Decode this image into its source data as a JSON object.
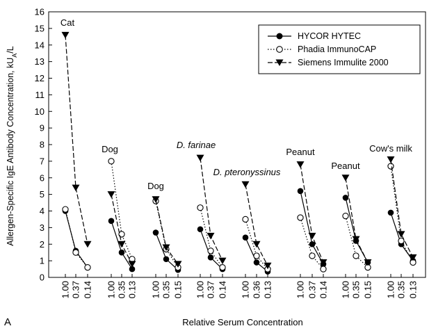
{
  "chart_data": {
    "type": "line",
    "panel_label": "A",
    "xlabel": "Relative Serum Concentration",
    "ylabel": "Allergen-Specific IgE Antibody Concentration, kU",
    "ylabel_sub": "A",
    "ylabel_tail": "/L",
    "ylim": [
      0,
      16
    ],
    "yticks": [
      "0",
      "1",
      "2",
      "3",
      "4",
      "5",
      "6",
      "7",
      "8",
      "9",
      "10",
      "11",
      "12",
      "13",
      "14",
      "15",
      "16"
    ],
    "legend": [
      {
        "name": "HYCOR HYTEC",
        "marker": "filled-circle",
        "line": "solid"
      },
      {
        "name": "Phadia ImmunoCAP",
        "marker": "open-circle",
        "line": "dotted"
      },
      {
        "name": "Siemens Immulite 2000",
        "marker": "filled-triangle-down",
        "line": "dashed"
      }
    ],
    "groups": [
      {
        "label": "Cat",
        "italic": false,
        "x": [
          "1.00",
          "0.37",
          "0.14"
        ],
        "hycor": [
          4.0,
          1.6,
          0.6
        ],
        "phadia": [
          4.1,
          1.5,
          0.6
        ],
        "siemens": [
          14.6,
          5.4,
          2.0
        ]
      },
      {
        "label": "Dog",
        "italic": false,
        "x": [
          "1.00",
          "0.35",
          "0.13"
        ],
        "hycor": [
          3.4,
          1.5,
          0.5
        ],
        "phadia": [
          7.0,
          2.6,
          1.1
        ],
        "siemens": [
          5.0,
          2.0,
          0.8
        ]
      },
      {
        "label": "Dog",
        "italic": false,
        "x": [
          "1.00",
          "0.35",
          "0.15"
        ],
        "hycor": [
          2.7,
          1.1,
          0.45
        ],
        "phadia": [
          4.6,
          1.7,
          0.6
        ],
        "siemens": [
          4.7,
          1.8,
          0.8
        ]
      },
      {
        "label": "D. farinae",
        "italic": true,
        "x": [
          "1.00",
          "0.37",
          "0.14"
        ],
        "hycor": [
          2.9,
          1.2,
          0.5
        ],
        "phadia": [
          4.2,
          1.6,
          0.6
        ],
        "siemens": [
          7.2,
          2.5,
          1.0
        ]
      },
      {
        "label": "D. pteronyssinus",
        "italic": true,
        "x": [
          "1.00",
          "0.36",
          "0.13"
        ],
        "hycor": [
          2.4,
          0.9,
          0.35
        ],
        "phadia": [
          3.5,
          1.3,
          0.5
        ],
        "siemens": [
          5.6,
          2.0,
          0.7
        ]
      },
      {
        "label": "Peanut",
        "italic": false,
        "x": [
          "1.00",
          "0.37",
          "0.14"
        ],
        "hycor": [
          5.2,
          2.0,
          0.8
        ],
        "phadia": [
          3.6,
          1.3,
          0.5
        ],
        "siemens": [
          6.8,
          2.5,
          0.9
        ]
      },
      {
        "label": "Peanut",
        "italic": false,
        "x": [
          "1.00",
          "0.35",
          "0.15"
        ],
        "hycor": [
          4.8,
          2.2,
          0.9
        ],
        "phadia": [
          3.7,
          1.3,
          0.6
        ],
        "siemens": [
          6.0,
          2.3,
          0.9
        ]
      },
      {
        "label": "Cow's milk",
        "italic": false,
        "x": [
          "1.00",
          "0.35",
          "0.13"
        ],
        "hycor": [
          3.9,
          2.0,
          1.0
        ],
        "phadia": [
          6.7,
          2.2,
          0.9
        ],
        "siemens": [
          7.1,
          2.6,
          1.2
        ]
      }
    ]
  }
}
